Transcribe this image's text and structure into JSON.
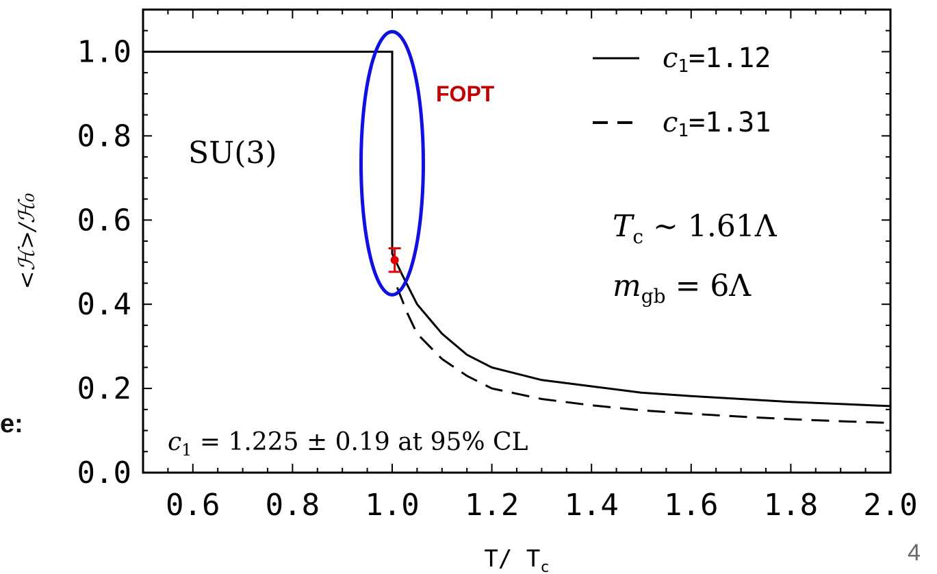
{
  "slide": {
    "left_fragment": "e:",
    "page_number": "4"
  },
  "chart_data": {
    "type": "line",
    "xlabel": "T/T_c",
    "ylabel": "<ℋ>/ℋ₀",
    "xlim": [
      0.5,
      2.0
    ],
    "ylim": [
      0.0,
      1.1
    ],
    "x_ticks": [
      "0.6",
      "0.8",
      "1.0",
      "1.2",
      "1.4",
      "1.6",
      "1.8",
      "2.0"
    ],
    "y_ticks": [
      "0.0",
      "0.2",
      "0.4",
      "0.6",
      "0.8",
      "1.0"
    ],
    "legend_placement": "top-right",
    "series": [
      {
        "name": "c₁=1.12",
        "style": "solid",
        "points": [
          [
            0.5,
            1.0
          ],
          [
            1.0,
            1.0
          ],
          [
            1.0,
            0.52
          ],
          [
            1.02,
            0.47
          ],
          [
            1.05,
            0.4
          ],
          [
            1.1,
            0.33
          ],
          [
            1.15,
            0.28
          ],
          [
            1.2,
            0.25
          ],
          [
            1.3,
            0.22
          ],
          [
            1.4,
            0.205
          ],
          [
            1.5,
            0.19
          ],
          [
            1.6,
            0.182
          ],
          [
            1.7,
            0.175
          ],
          [
            1.8,
            0.168
          ],
          [
            1.9,
            0.163
          ],
          [
            2.0,
            0.158
          ]
        ]
      },
      {
        "name": "c₁=1.31",
        "style": "dashed",
        "points": [
          [
            1.01,
            0.44
          ],
          [
            1.03,
            0.38
          ],
          [
            1.05,
            0.33
          ],
          [
            1.1,
            0.27
          ],
          [
            1.15,
            0.23
          ],
          [
            1.2,
            0.2
          ],
          [
            1.3,
            0.175
          ],
          [
            1.4,
            0.16
          ],
          [
            1.5,
            0.148
          ],
          [
            1.6,
            0.14
          ],
          [
            1.7,
            0.133
          ],
          [
            1.8,
            0.127
          ],
          [
            1.9,
            0.122
          ],
          [
            2.0,
            0.118
          ]
        ]
      }
    ],
    "data_point": {
      "x": 1.005,
      "y": 0.505,
      "err": 0.028,
      "color": "#e00000"
    },
    "annotations": {
      "fopt": "FOPT",
      "group": "SU(3)",
      "tc_line": "T_c ∼ 1.61Λ",
      "mgb_line": "m_gb = 6Λ",
      "c1_fit": "c₁ = 1.225 ± 0.19 at 95% CL"
    },
    "highlight_ellipse": {
      "center_x": 1.0,
      "center_y": 0.735,
      "rx": 0.0625,
      "ry": 0.3125,
      "color": "#1010e0"
    },
    "colors": {
      "axes": "#000000",
      "fopt": "#c00000"
    }
  }
}
